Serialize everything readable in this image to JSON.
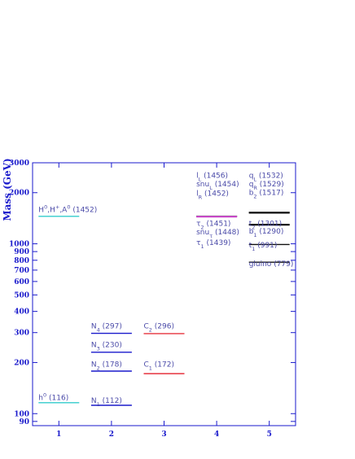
{
  "chart_data": {
    "type": "scatter",
    "ylabel": "Mass (GeV)",
    "yscale": "log",
    "ylim": [
      85,
      3000
    ],
    "xlim": [
      0.5,
      5.5
    ],
    "x_ticks": [
      "1",
      "2",
      "3",
      "4",
      "5"
    ],
    "y_ticks": [
      {
        "value": 90,
        "label": "90"
      },
      {
        "value": 100,
        "label": "100"
      },
      {
        "value": 200,
        "label": "200"
      },
      {
        "value": 300,
        "label": "300"
      },
      {
        "value": 400,
        "label": "400"
      },
      {
        "value": 500,
        "label": "500"
      },
      {
        "value": 600,
        "label": "600"
      },
      {
        "value": 700,
        "label": "700"
      },
      {
        "value": 800,
        "label": "800"
      },
      {
        "value": 900,
        "label": "900"
      },
      {
        "value": 1000,
        "label": "1000"
      },
      {
        "value": 2000,
        "label": "2000"
      },
      {
        "value": 3000,
        "label": "3000"
      }
    ],
    "levels": [
      {
        "column": 1,
        "mass": 1452,
        "color": "#33cccc"
      },
      {
        "column": 1,
        "mass": 116,
        "color": "#33cccc"
      },
      {
        "column": 2,
        "mass": 297,
        "color": "#1a1acc"
      },
      {
        "column": 2,
        "mass": 230,
        "color": "#1a1acc"
      },
      {
        "column": 2,
        "mass": 178,
        "color": "#1a1acc"
      },
      {
        "column": 2,
        "mass": 112,
        "color": "#1a1acc"
      },
      {
        "column": 3,
        "mass": 296,
        "color": "#e6333d"
      },
      {
        "column": 3,
        "mass": 172,
        "color": "#e6333d"
      },
      {
        "column": 4,
        "mass": 1456,
        "color": "#22aa22"
      },
      {
        "column": 4,
        "mass": 1454,
        "color": "#22aa22"
      },
      {
        "column": 4,
        "mass": 1452,
        "color": "#22aa22"
      },
      {
        "column": 4,
        "mass": 1451,
        "color": "#cc44cc"
      },
      {
        "column": 4,
        "mass": 1448,
        "color": "#cc44cc"
      },
      {
        "column": 4,
        "mass": 1439,
        "color": "#cc44cc"
      },
      {
        "column": 5,
        "mass": 1532,
        "color": "#111111"
      },
      {
        "column": 5,
        "mass": 1529,
        "color": "#111111"
      },
      {
        "column": 5,
        "mass": 1517,
        "color": "#111111"
      },
      {
        "column": 5,
        "mass": 1301,
        "color": "#111111"
      },
      {
        "column": 5,
        "mass": 1290,
        "color": "#111111"
      },
      {
        "column": 5,
        "mass": 991,
        "color": "#111111"
      },
      {
        "column": 5,
        "mass": 779,
        "color": "#111111"
      }
    ],
    "labels": [
      {
        "column": 1,
        "main": "H",
        "sup": "0",
        "rest": ",H",
        "sup2": "+",
        "rest2": ",A",
        "sup3": "0",
        "value": " (1452)",
        "pos": 1540
      },
      {
        "column": 1,
        "main": "h",
        "sup": "0",
        "value": " (116)",
        "pos": 120
      },
      {
        "column": 2,
        "main": "N",
        "sub": "4",
        "value": " (297)",
        "pos": 318
      },
      {
        "column": 2,
        "main": "N",
        "sub": "3",
        "value": " (230)",
        "pos": 246
      },
      {
        "column": 2,
        "main": "N",
        "sub": "2",
        "value": " (178)",
        "pos": 189
      },
      {
        "column": 2,
        "main": "N",
        "sub": "1",
        "value": " (112)",
        "pos": 116
      },
      {
        "column": 3,
        "main": "C",
        "sub": "2",
        "value": " (296)",
        "pos": 318
      },
      {
        "column": 3,
        "main": "C",
        "sub": "1",
        "value": " (172)",
        "pos": 189
      },
      {
        "column": 4,
        "main": "l",
        "sub": "L",
        "value": " (1456)",
        "pos": 2450
      },
      {
        "column": 4,
        "main": "snu",
        "sub": "L",
        "value": " (1454)",
        "pos": 2180
      },
      {
        "column": 4,
        "main": "l",
        "sub": "R",
        "value": " (1452)",
        "pos": 1920
      },
      {
        "column": 4,
        "main": "τ",
        "sub": "2",
        "value": " (1451)",
        "pos": 1275
      },
      {
        "column": 4,
        "main": "snu",
        "sub": "τ",
        "value": " (1448)",
        "pos": 1135
      },
      {
        "column": 4,
        "main": "τ",
        "sub": "1",
        "value": " (1439)",
        "pos": 985
      },
      {
        "column": 5,
        "main": "q",
        "sub": "L",
        "value": " (1532)",
        "pos": 2450
      },
      {
        "column": 5,
        "main": "q",
        "sub": "R",
        "value": " (1529)",
        "pos": 2180
      },
      {
        "column": 5,
        "main": "b",
        "sub": "2",
        "value": " (1517)",
        "pos": 1945
      },
      {
        "column": 5,
        "main": "t",
        "sub": "2",
        "value": " (1301)",
        "pos": 1275
      },
      {
        "column": 5,
        "main": "b",
        "sub": "1",
        "value": " (1290)",
        "pos": 1150
      },
      {
        "column": 5,
        "main": "t",
        "sub": "1",
        "value": " (991)",
        "pos": 950
      },
      {
        "column": 5,
        "main": "gluino",
        "value": " (779)",
        "pos": 740
      }
    ]
  }
}
